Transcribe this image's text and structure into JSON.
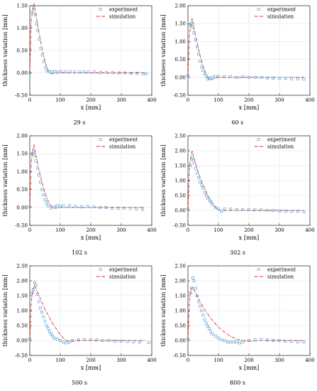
{
  "chart_data": [
    {
      "type": "scatter",
      "caption": "29 s",
      "xlabel": "x [mm]",
      "ylabel": "thickness variation [mm]",
      "xlim": [
        0,
        400
      ],
      "ylim": [
        -0.5,
        1.5
      ],
      "xticks": [
        0,
        100,
        200,
        300,
        400
      ],
      "yticks": [
        -0.5,
        0,
        0.5,
        1.0,
        1.5
      ],
      "ytick_labels": [
        "-0.50",
        "0.00",
        "0.50",
        "1.00",
        "1.50"
      ],
      "grid": true,
      "legend_position": "top-right",
      "series": [
        {
          "name": "experiment",
          "style": "markers",
          "color": "#4a9bd1",
          "x": [
            0,
            8,
            13,
            18,
            22,
            26,
            31,
            36,
            41,
            46,
            52,
            57,
            62,
            72,
            82,
            92,
            102,
            117,
            132,
            147,
            162,
            177,
            192,
            212,
            232,
            252,
            272,
            292,
            312,
            332,
            352,
            372,
            382
          ],
          "y": [
            0.0,
            1.35,
            1.45,
            1.3,
            1.1,
            0.95,
            0.75,
            0.55,
            0.4,
            0.25,
            0.12,
            0.05,
            0.03,
            0.02,
            0.03,
            0.02,
            0.03,
            0.02,
            0.03,
            0.02,
            0.02,
            0.02,
            0.02,
            0.02,
            0.01,
            0.01,
            0.01,
            0.0,
            0.0,
            -0.01,
            -0.01,
            -0.02,
            -0.02
          ]
        },
        {
          "name": "simulation",
          "style": "dashdot",
          "color": "#cc2222",
          "x": [
            0,
            5,
            10,
            14,
            20,
            30,
            40,
            50,
            60,
            65,
            70,
            80,
            100,
            150,
            200,
            250,
            300,
            350,
            380
          ],
          "y": [
            0.0,
            1.2,
            1.4,
            1.55,
            1.3,
            0.9,
            0.55,
            0.25,
            0.05,
            0.0,
            -0.02,
            -0.01,
            0.0,
            0.0,
            0.0,
            0.0,
            0.0,
            0.0,
            0.0
          ]
        }
      ]
    },
    {
      "type": "scatter",
      "caption": "60 s",
      "xlabel": "x [mm]",
      "ylabel": "thickness variation [mm]",
      "xlim": [
        0,
        400
      ],
      "ylim": [
        -0.5,
        2.0
      ],
      "xticks": [
        0,
        100,
        200,
        300,
        400
      ],
      "yticks": [
        -0.5,
        0,
        0.5,
        1.0,
        1.5,
        2.0
      ],
      "ytick_labels": [
        "-0.50",
        "0.00",
        "0.50",
        "1.00",
        "1.50",
        "2.00"
      ],
      "grid": true,
      "legend_position": "top-right",
      "series": [
        {
          "name": "experiment",
          "style": "markers",
          "color": "#4a9bd1",
          "x": [
            0,
            8,
            12,
            16,
            20,
            25,
            30,
            35,
            40,
            45,
            50,
            55,
            60,
            65,
            70,
            80,
            90,
            100,
            120,
            140,
            160,
            180,
            200,
            220,
            240,
            260,
            280,
            300,
            320,
            340,
            360,
            380
          ],
          "y": [
            0.05,
            1.45,
            1.5,
            1.4,
            1.25,
            1.05,
            0.85,
            0.65,
            0.45,
            0.3,
            0.2,
            0.1,
            0.03,
            -0.05,
            -0.02,
            0.0,
            0.02,
            0.02,
            0.02,
            0.02,
            0.0,
            0.02,
            0.0,
            0.0,
            0.0,
            -0.02,
            -0.02,
            -0.03,
            -0.03,
            -0.04,
            -0.04,
            -0.05
          ]
        },
        {
          "name": "simulation",
          "style": "dashdot",
          "color": "#cc2222",
          "x": [
            0,
            5,
            10,
            14,
            20,
            30,
            40,
            50,
            60,
            70,
            75,
            85,
            100,
            150,
            200,
            250,
            300,
            350,
            380
          ],
          "y": [
            0.0,
            1.2,
            1.5,
            1.65,
            1.35,
            0.95,
            0.6,
            0.3,
            0.08,
            -0.05,
            -0.08,
            -0.03,
            0.0,
            0.0,
            0.0,
            0.0,
            0.0,
            0.0,
            0.0
          ]
        }
      ]
    },
    {
      "type": "scatter",
      "caption": "102 s",
      "xlabel": "x [mm]",
      "ylabel": "thickness variation [mm]",
      "xlim": [
        0,
        400
      ],
      "ylim": [
        -0.5,
        2.0
      ],
      "xticks": [
        0,
        100,
        200,
        300,
        400
      ],
      "yticks": [
        -0.5,
        0,
        0.5,
        1.0,
        1.5,
        2.0
      ],
      "ytick_labels": [
        "-0.50",
        "0.00",
        "0.50",
        "1.00",
        "1.50",
        "2.00"
      ],
      "grid": true,
      "legend_position": "top-right",
      "series": [
        {
          "name": "experiment",
          "style": "markers",
          "color": "#4a9bd1",
          "x": [
            0,
            8,
            12,
            16,
            20,
            25,
            30,
            35,
            40,
            45,
            50,
            55,
            60,
            70,
            80,
            90,
            100,
            110,
            130,
            150,
            170,
            190,
            210,
            230,
            250,
            270,
            290,
            310,
            330,
            350,
            370
          ],
          "y": [
            0.02,
            1.5,
            1.55,
            1.45,
            1.3,
            1.1,
            0.9,
            0.7,
            0.5,
            0.35,
            0.22,
            0.12,
            0.05,
            -0.02,
            0.02,
            0.05,
            0.03,
            0.05,
            0.05,
            0.03,
            0.02,
            0.03,
            0.02,
            0.0,
            0.0,
            -0.02,
            -0.02,
            -0.02,
            -0.03,
            -0.04,
            -0.05
          ]
        },
        {
          "name": "simulation",
          "style": "dashdot",
          "color": "#cc2222",
          "x": [
            0,
            5,
            10,
            14,
            20,
            30,
            40,
            50,
            60,
            70,
            80,
            90,
            100,
            150,
            200,
            250,
            300,
            350,
            375
          ],
          "y": [
            0.0,
            1.3,
            1.6,
            1.75,
            1.45,
            1.05,
            0.7,
            0.4,
            0.18,
            0.04,
            -0.02,
            -0.02,
            0.0,
            0.0,
            0.0,
            0.0,
            0.0,
            0.0,
            0.0
          ]
        }
      ]
    },
    {
      "type": "scatter",
      "caption": "302 s",
      "xlabel": "x [mm]",
      "ylabel": "thickness variation [mm]",
      "xlim": [
        0,
        400
      ],
      "ylim": [
        -0.5,
        2.5
      ],
      "xticks": [
        0,
        100,
        200,
        300,
        400
      ],
      "yticks": [
        -0.5,
        0,
        0.5,
        1.0,
        1.5,
        2.0,
        2.5
      ],
      "ytick_labels": [
        "-0.50",
        "0.00",
        "0.50",
        "1.00",
        "1.50",
        "2.00",
        "2.50"
      ],
      "grid": true,
      "legend_position": "top-right",
      "series": [
        {
          "name": "experiment",
          "style": "markers",
          "color": "#4a9bd1",
          "x": [
            0,
            8,
            12,
            16,
            20,
            25,
            30,
            35,
            40,
            45,
            50,
            55,
            60,
            65,
            70,
            75,
            80,
            90,
            100,
            110,
            120,
            140,
            160,
            180,
            200,
            220,
            240,
            260,
            280,
            300,
            320,
            340,
            360,
            380
          ],
          "y": [
            0.05,
            1.5,
            1.7,
            1.75,
            1.6,
            1.4,
            1.25,
            1.1,
            0.95,
            0.85,
            0.75,
            0.6,
            0.5,
            0.42,
            0.35,
            0.28,
            0.2,
            0.1,
            0.05,
            -0.03,
            0.05,
            0.05,
            0.03,
            0.03,
            0.03,
            0.02,
            0.02,
            0.0,
            0.0,
            -0.02,
            -0.02,
            -0.03,
            -0.03,
            -0.05
          ]
        },
        {
          "name": "simulation",
          "style": "dashdot",
          "color": "#cc2222",
          "x": [
            0,
            5,
            10,
            14,
            20,
            30,
            40,
            50,
            60,
            70,
            80,
            90,
            100,
            110,
            150,
            200,
            250,
            300,
            350,
            380
          ],
          "y": [
            0.0,
            1.4,
            1.85,
            2.0,
            1.75,
            1.4,
            1.1,
            0.85,
            0.62,
            0.42,
            0.25,
            0.1,
            0.02,
            0.0,
            0.0,
            0.0,
            0.0,
            0.0,
            0.0,
            0.0
          ]
        }
      ]
    },
    {
      "type": "scatter",
      "caption": "500 s",
      "xlabel": "x [mm]",
      "ylabel": "thickness variation [mm]",
      "xlim": [
        0,
        400
      ],
      "ylim": [
        -0.5,
        2.5
      ],
      "xticks": [
        0,
        100,
        200,
        300,
        400
      ],
      "yticks": [
        -0.5,
        0,
        0.5,
        1.0,
        1.5,
        2.0,
        2.5
      ],
      "ytick_labels": [
        "-0.50",
        "0.00",
        "0.50",
        "1.00",
        "1.50",
        "2.00",
        "2.50"
      ],
      "grid": true,
      "legend_position": "top-right",
      "series": [
        {
          "name": "experiment",
          "style": "markers",
          "color": "#4a9bd1",
          "x": [
            0,
            8,
            12,
            16,
            20,
            25,
            30,
            35,
            40,
            45,
            50,
            55,
            60,
            65,
            70,
            75,
            80,
            90,
            100,
            110,
            120,
            130,
            140,
            160,
            180,
            200,
            220,
            240,
            260,
            280,
            300,
            320,
            340,
            360,
            390
          ],
          "y": [
            0.05,
            1.6,
            1.7,
            1.95,
            1.85,
            1.55,
            1.3,
            1.1,
            0.95,
            0.8,
            0.65,
            0.5,
            0.4,
            0.3,
            0.22,
            0.15,
            0.08,
            0.05,
            0.0,
            -0.05,
            -0.08,
            -0.05,
            0.0,
            0.02,
            0.03,
            0.03,
            0.02,
            0.0,
            0.0,
            -0.02,
            -0.02,
            -0.03,
            -0.04,
            -0.05,
            -0.07
          ]
        },
        {
          "name": "simulation",
          "style": "dashdot",
          "color": "#cc2222",
          "x": [
            0,
            5,
            10,
            15,
            20,
            30,
            40,
            50,
            60,
            70,
            80,
            90,
            100,
            110,
            120,
            130,
            150,
            200,
            250,
            300,
            350,
            380
          ],
          "y": [
            0.0,
            1.3,
            1.7,
            1.85,
            1.75,
            1.5,
            1.28,
            1.05,
            0.85,
            0.66,
            0.5,
            0.34,
            0.2,
            0.08,
            0.0,
            -0.02,
            0.0,
            0.0,
            0.0,
            0.0,
            0.0,
            0.0
          ]
        }
      ]
    },
    {
      "type": "scatter",
      "caption": "800 s",
      "xlabel": "x [mm]",
      "ylabel": "thickness variation [mm]",
      "xlim": [
        0,
        400
      ],
      "ylim": [
        -0.5,
        2.5
      ],
      "xticks": [
        0,
        100,
        200,
        300,
        400
      ],
      "yticks": [
        -0.5,
        0,
        0.5,
        1.0,
        1.5,
        2.0,
        2.5
      ],
      "ytick_labels": [
        "-0.50",
        "0.00",
        "0.50",
        "1.00",
        "1.50",
        "2.00",
        "2.50"
      ],
      "grid": true,
      "legend_position": "top-right",
      "series": [
        {
          "name": "experiment",
          "style": "markers",
          "color": "#4a9bd1",
          "x": [
            0,
            8,
            12,
            16,
            20,
            25,
            30,
            35,
            40,
            45,
            50,
            55,
            60,
            65,
            70,
            75,
            80,
            90,
            100,
            110,
            120,
            130,
            140,
            150,
            160,
            170,
            180,
            200,
            220,
            240,
            260,
            280,
            300,
            320,
            340,
            360,
            380
          ],
          "y": [
            0.05,
            1.6,
            1.75,
            2.1,
            2.0,
            1.75,
            1.5,
            1.3,
            1.15,
            1.0,
            0.85,
            0.7,
            0.58,
            0.48,
            0.4,
            0.3,
            0.22,
            0.15,
            0.08,
            0.03,
            0.0,
            -0.05,
            -0.05,
            -0.05,
            -0.05,
            -0.08,
            -0.05,
            0.0,
            0.03,
            0.03,
            0.02,
            0.0,
            0.0,
            -0.02,
            -0.03,
            -0.05,
            -0.05
          ]
        },
        {
          "name": "simulation",
          "style": "dashdot",
          "color": "#cc2222",
          "x": [
            0,
            5,
            10,
            15,
            20,
            30,
            40,
            50,
            60,
            80,
            100,
            120,
            140,
            160,
            180,
            200,
            250,
            300,
            350,
            380
          ],
          "y": [
            0.0,
            1.3,
            1.7,
            1.8,
            1.7,
            1.5,
            1.3,
            1.12,
            0.95,
            0.68,
            0.45,
            0.28,
            0.14,
            0.04,
            0.0,
            -0.02,
            0.0,
            0.0,
            0.0,
            0.0
          ]
        }
      ]
    }
  ]
}
